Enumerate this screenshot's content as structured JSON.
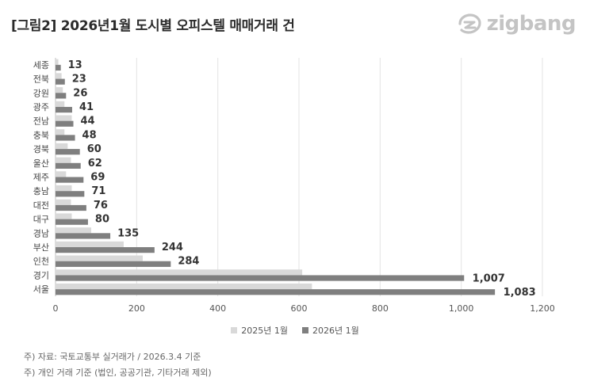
{
  "title": "[그림2] 2026년1월 도시별 오피스텔 매매거래 건",
  "logo": {
    "text": "zigbang",
    "icon": "zigbang-logo-icon",
    "color": "#c4c4c4"
  },
  "notes": [
    "주) 자료: 국토교통부 실거래가 / 2026.3.4 기준",
    "주) 개인 거래 기준 (법인, 공공기관, 기타거래 제외)"
  ],
  "chart_data": {
    "type": "bar",
    "orientation": "horizontal",
    "categories": [
      "세종",
      "전북",
      "강원",
      "광주",
      "전남",
      "충북",
      "경북",
      "울산",
      "제주",
      "충남",
      "대전",
      "대구",
      "경남",
      "부산",
      "인천",
      "경기",
      "서울"
    ],
    "series": [
      {
        "name": "2025년 1월",
        "color": "#d9d9d9",
        "values": [
          7,
          15,
          18,
          22,
          40,
          22,
          30,
          38,
          26,
          40,
          38,
          40,
          88,
          168,
          215,
          608,
          632
        ]
      },
      {
        "name": "2026년 1월",
        "color": "#7f7f7f",
        "values": [
          13,
          23,
          26,
          41,
          44,
          48,
          60,
          62,
          69,
          71,
          76,
          80,
          135,
          244,
          284,
          1007,
          1083
        ]
      }
    ],
    "data_labels": [
      "13",
      "23",
      "26",
      "41",
      "44",
      "48",
      "60",
      "62",
      "69",
      "71",
      "76",
      "80",
      "135",
      "244",
      "284",
      "1,007",
      "1,083"
    ],
    "xticks": [
      "0",
      "200",
      "400",
      "600",
      "800",
      "1,000",
      "1,200"
    ],
    "xlim": [
      0,
      1200
    ],
    "grid": true,
    "legend_position": "bottom"
  }
}
